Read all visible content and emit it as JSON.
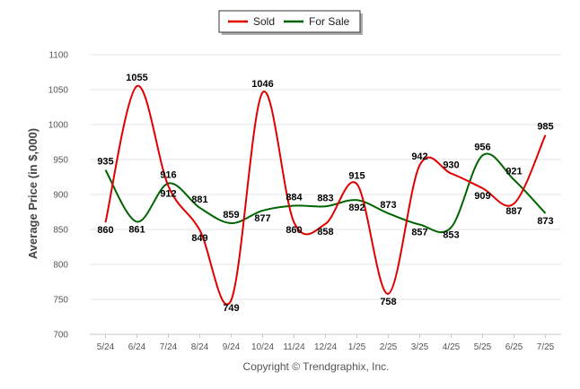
{
  "chart_data": {
    "type": "line",
    "ylabel": "Average Price (in $,000)",
    "xlabel": "",
    "ylim": [
      700,
      1100
    ],
    "yticks": [
      700,
      750,
      800,
      850,
      900,
      950,
      1000,
      1050,
      1100
    ],
    "categories": [
      "5/24",
      "6/24",
      "7/24",
      "8/24",
      "9/24",
      "10/24",
      "11/24",
      "12/24",
      "1/25",
      "2/25",
      "3/25",
      "4/25",
      "5/25",
      "6/25",
      "7/25"
    ],
    "series": [
      {
        "name": "Sold",
        "color": "#e00000",
        "values": [
          860,
          1055,
          912,
          849,
          749,
          1046,
          860,
          858,
          915,
          758,
          942,
          930,
          909,
          887,
          985
        ]
      },
      {
        "name": "For Sale",
        "color": "#006400",
        "values": [
          935,
          861,
          916,
          881,
          859,
          877,
          884,
          883,
          892,
          873,
          857,
          853,
          956,
          921,
          873
        ]
      }
    ],
    "grid": true,
    "legend_position": "top-center"
  },
  "copyright": "Copyright © Trendgraphix, Inc."
}
